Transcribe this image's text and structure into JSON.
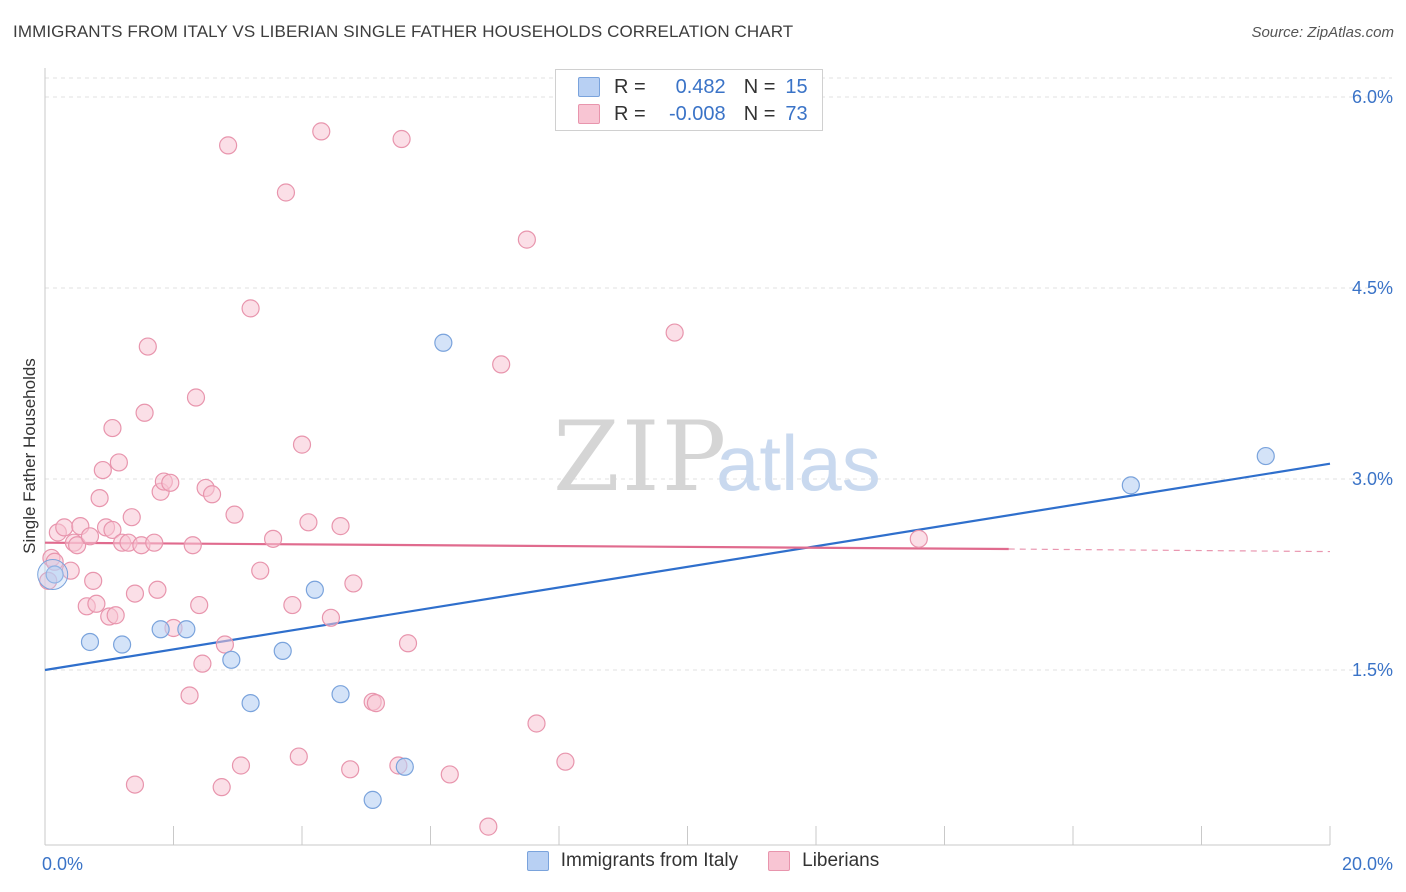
{
  "title": "IMMIGRANTS FROM ITALY VS LIBERIAN SINGLE FATHER HOUSEHOLDS CORRELATION CHART",
  "source": "Source: ZipAtlas.com",
  "watermark": {
    "zip": "ZIP",
    "atlas": "atlas"
  },
  "legend_top": {
    "rows": [
      {
        "r_label": "R =",
        "r_value": "0.482",
        "n_label": "N =",
        "n_value": "15"
      },
      {
        "r_label": "R =",
        "r_value": "-0.008",
        "n_label": "N =",
        "n_value": "73"
      }
    ]
  },
  "legend_bottom": [
    {
      "label": "Immigrants from Italy"
    },
    {
      "label": "Liberians"
    }
  ],
  "colors": {
    "blue_fill": "#b8d0f3",
    "blue_stroke": "#7aa3dc",
    "blue_line": "#2f6fcc",
    "pink_fill": "#f8c5d3",
    "pink_stroke": "#e895ad",
    "pink_line": "#e06b8e",
    "grid": "#e2e2e2",
    "axis": "#c9c9c9",
    "tick_text": "#3a73c7"
  },
  "chart_data": {
    "type": "scatter",
    "title": "IMMIGRANTS FROM ITALY VS LIBERIAN SINGLE FATHER HOUSEHOLDS CORRELATION CHART",
    "xlabel": "",
    "ylabel": "Single Father Households",
    "xlim": [
      0,
      20
    ],
    "ylim": [
      0,
      6.2
    ],
    "x_tick_labels": [
      {
        "x": 0,
        "label": "0.0%"
      },
      {
        "x": 20,
        "label": "20.0%"
      }
    ],
    "y_tick_labels": [
      {
        "y": 1.5,
        "label": "1.5%"
      },
      {
        "y": 3.0,
        "label": "3.0%"
      },
      {
        "y": 4.5,
        "label": "4.5%"
      },
      {
        "y": 6.0,
        "label": "6.0%"
      }
    ],
    "grid": true,
    "legend_position": "top-center",
    "series": [
      {
        "name": "Immigrants from Italy",
        "color": "#b8d0f3",
        "points": [
          [
            0.15,
            2.25
          ],
          [
            0.7,
            1.72
          ],
          [
            1.2,
            1.7
          ],
          [
            1.8,
            1.82
          ],
          [
            2.2,
            1.82
          ],
          [
            2.9,
            1.58
          ],
          [
            3.2,
            1.24
          ],
          [
            3.7,
            1.65
          ],
          [
            4.2,
            2.13
          ],
          [
            4.6,
            1.31
          ],
          [
            5.1,
            0.48
          ],
          [
            5.6,
            0.74
          ],
          [
            6.2,
            4.07
          ],
          [
            16.9,
            2.95
          ],
          [
            19.0,
            3.18
          ]
        ],
        "trend": {
          "x": [
            0,
            20
          ],
          "y": [
            1.5,
            3.12
          ]
        }
      },
      {
        "name": "Liberians",
        "color": "#f8c5d3",
        "points": [
          [
            0.05,
            2.2
          ],
          [
            0.1,
            2.38
          ],
          [
            0.15,
            2.35
          ],
          [
            0.2,
            2.58
          ],
          [
            0.3,
            2.62
          ],
          [
            0.4,
            2.28
          ],
          [
            0.45,
            2.5
          ],
          [
            0.5,
            2.48
          ],
          [
            0.55,
            2.63
          ],
          [
            0.65,
            2.0
          ],
          [
            0.7,
            2.55
          ],
          [
            0.75,
            2.2
          ],
          [
            0.8,
            2.02
          ],
          [
            0.85,
            2.85
          ],
          [
            0.9,
            3.07
          ],
          [
            0.95,
            2.62
          ],
          [
            1.0,
            1.92
          ],
          [
            1.05,
            2.6
          ],
          [
            1.1,
            1.93
          ],
          [
            1.05,
            3.4
          ],
          [
            1.15,
            3.13
          ],
          [
            1.2,
            2.5
          ],
          [
            1.3,
            2.5
          ],
          [
            1.35,
            2.7
          ],
          [
            1.4,
            2.1
          ],
          [
            1.5,
            2.48
          ],
          [
            1.55,
            3.52
          ],
          [
            1.6,
            4.04
          ],
          [
            1.7,
            2.5
          ],
          [
            1.75,
            2.13
          ],
          [
            1.8,
            2.9
          ],
          [
            1.85,
            2.98
          ],
          [
            1.95,
            2.97
          ],
          [
            2.0,
            1.83
          ],
          [
            2.25,
            1.3
          ],
          [
            2.3,
            2.48
          ],
          [
            2.35,
            3.64
          ],
          [
            2.4,
            2.01
          ],
          [
            2.45,
            1.55
          ],
          [
            2.5,
            2.93
          ],
          [
            2.6,
            2.88
          ],
          [
            2.8,
            1.7
          ],
          [
            2.85,
            5.62
          ],
          [
            2.95,
            2.72
          ],
          [
            3.05,
            0.75
          ],
          [
            3.2,
            4.34
          ],
          [
            3.35,
            2.28
          ],
          [
            3.55,
            2.53
          ],
          [
            3.75,
            5.25
          ],
          [
            3.85,
            2.01
          ],
          [
            3.95,
            0.82
          ],
          [
            4.0,
            3.27
          ],
          [
            4.1,
            2.66
          ],
          [
            4.3,
            5.73
          ],
          [
            4.45,
            1.91
          ],
          [
            4.6,
            2.63
          ],
          [
            4.75,
            0.72
          ],
          [
            4.8,
            2.18
          ],
          [
            5.1,
            1.25
          ],
          [
            5.15,
            1.24
          ],
          [
            5.5,
            0.75
          ],
          [
            5.55,
            5.67
          ],
          [
            5.65,
            1.71
          ],
          [
            6.3,
            0.68
          ],
          [
            6.9,
            0.27
          ],
          [
            7.1,
            3.9
          ],
          [
            7.5,
            4.88
          ],
          [
            7.65,
            1.08
          ],
          [
            8.1,
            0.78
          ],
          [
            9.8,
            4.15
          ],
          [
            13.6,
            2.53
          ],
          [
            1.4,
            0.6
          ],
          [
            2.75,
            0.58
          ]
        ],
        "trend": {
          "x": [
            0,
            15
          ],
          "y": [
            2.5,
            2.45
          ]
        },
        "trend_dashed_extension": {
          "x": [
            15,
            20
          ],
          "y": [
            2.45,
            2.43
          ]
        }
      }
    ]
  }
}
